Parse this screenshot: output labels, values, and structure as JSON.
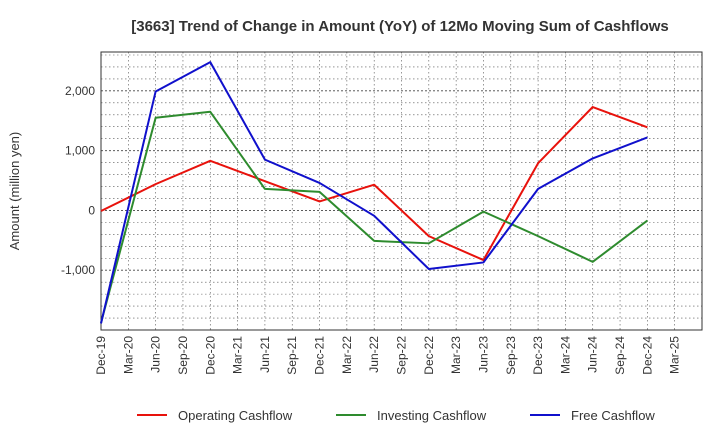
{
  "chart_data": {
    "type": "line",
    "title": "[3663]  Trend of Change in Amount (YoY) of 12Mo Moving Sum of Cashflows",
    "xlabel": "",
    "ylabel": "Amount (million yen)",
    "ylim": [
      -2000,
      2650
    ],
    "yticks": [
      -1000,
      0,
      1000,
      2000
    ],
    "ytick_labels": [
      "-1,000",
      "0",
      "1,000",
      "2,000"
    ],
    "categories": [
      "Dec-19",
      "Mar-20",
      "Jun-20",
      "Sep-20",
      "Dec-20",
      "Mar-21",
      "Jun-21",
      "Sep-21",
      "Dec-21",
      "Mar-22",
      "Jun-22",
      "Sep-22",
      "Dec-22",
      "Mar-23",
      "Jun-23",
      "Sep-23",
      "Dec-23",
      "Mar-24",
      "Jun-24",
      "Sep-24",
      "Dec-24",
      "Mar-25"
    ],
    "series": [
      {
        "name": "Operating Cashflow",
        "color": "#e8120c",
        "values": [
          -10,
          null,
          440,
          null,
          830,
          null,
          490,
          null,
          150,
          null,
          430,
          null,
          -430,
          null,
          -830,
          null,
          790,
          null,
          1730,
          null,
          1390,
          null
        ]
      },
      {
        "name": "Investing Cashflow",
        "color": "#2e8b2e",
        "values": [
          -1880,
          null,
          1550,
          null,
          1650,
          null,
          360,
          null,
          310,
          null,
          -510,
          null,
          -550,
          null,
          -20,
          null,
          -430,
          null,
          -860,
          null,
          -170,
          null
        ]
      },
      {
        "name": "Free Cashflow",
        "color": "#1010cc",
        "values": [
          -1890,
          null,
          1990,
          null,
          2480,
          null,
          850,
          null,
          460,
          null,
          -90,
          null,
          -980,
          null,
          -870,
          null,
          360,
          null,
          870,
          null,
          1220,
          null
        ]
      }
    ],
    "grid": true,
    "legend_position": "bottom"
  }
}
